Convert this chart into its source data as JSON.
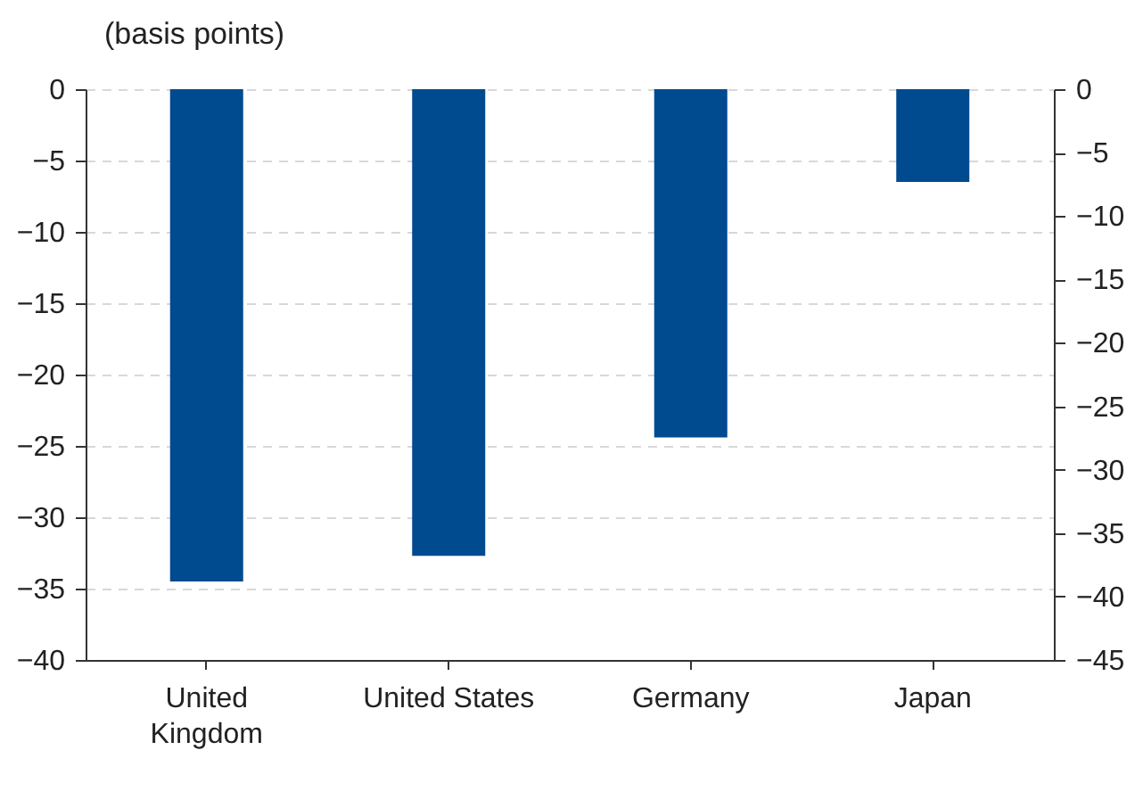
{
  "chart_data": {
    "type": "bar",
    "ylabel": "(basis points)",
    "categories": [
      "United Kingdom",
      "United States",
      "Germany",
      "Japan"
    ],
    "values": [
      -34.5,
      -32.7,
      -24.4,
      -6.5
    ],
    "color": "#004a8f",
    "ylim": [
      -40,
      0
    ],
    "yticks": [
      0,
      -5,
      -10,
      -15,
      -20,
      -25,
      -30,
      -35,
      -40
    ],
    "y2lim": [
      -45,
      0
    ],
    "y2ticks": [
      0,
      -5,
      -10,
      -15,
      -20,
      -25,
      -30,
      -35,
      -40,
      -45
    ],
    "grid": "y"
  }
}
